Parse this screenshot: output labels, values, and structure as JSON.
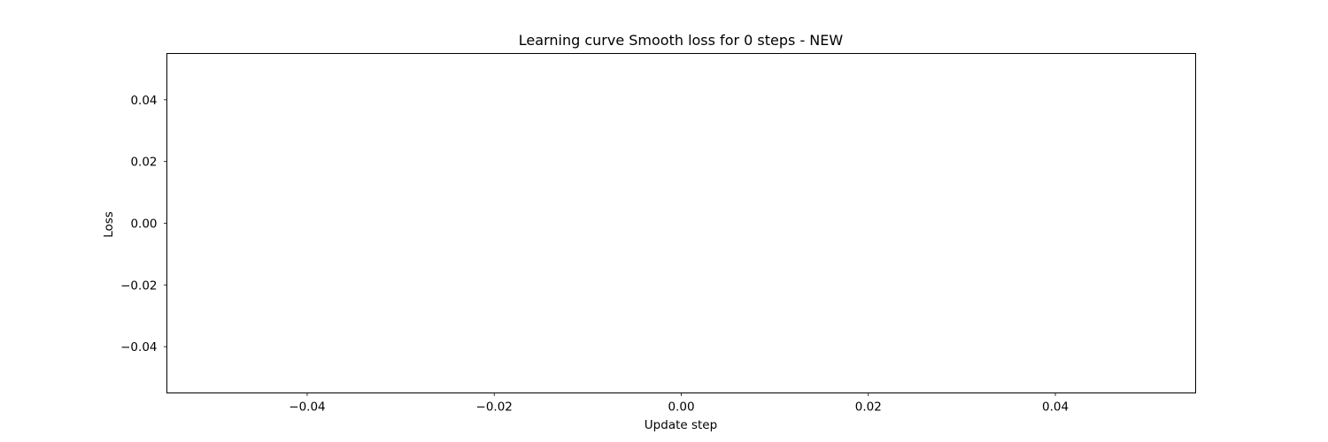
{
  "chart_data": {
    "type": "line",
    "title": "Learning curve Smooth loss for 0 steps - NEW",
    "xlabel": "Update step",
    "ylabel": "Loss",
    "xlim": [
      -0.055,
      0.055
    ],
    "ylim": [
      -0.055,
      0.055
    ],
    "xticks": [
      -0.04,
      -0.02,
      0.0,
      0.02,
      0.04
    ],
    "yticks": [
      -0.04,
      -0.02,
      0.0,
      0.02,
      0.04
    ],
    "xtick_labels": [
      "−0.04",
      "−0.02",
      "0.00",
      "0.02",
      "0.04"
    ],
    "ytick_labels": [
      "−0.04",
      "−0.02",
      "0.00",
      "0.02",
      "0.04"
    ],
    "grid": false,
    "series": [
      {
        "x": [],
        "y": []
      }
    ],
    "colors": {
      "axes": "#000000",
      "background": "#ffffff"
    }
  }
}
